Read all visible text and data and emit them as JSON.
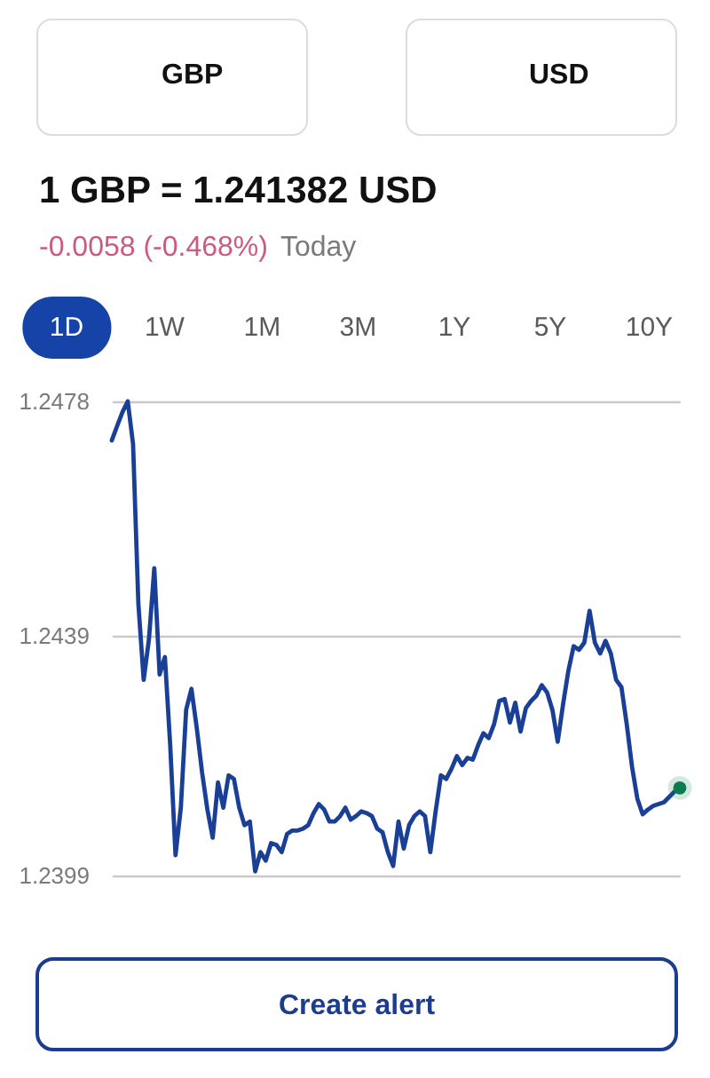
{
  "chart_data": {
    "type": "line",
    "title": "1 GBP = 1.241382 USD",
    "subtitle": "-0.0058 (-0.468%)",
    "annotations": [
      "GBP",
      "USD",
      "1D",
      "1W",
      "1M",
      "3M",
      "1Y",
      "5Y",
      "10Y",
      "Today",
      "Create alert"
    ],
    "categories": [
      null,
      null,
      null,
      null,
      null,
      null,
      null,
      null,
      null,
      null,
      null,
      null,
      null,
      null,
      null,
      null,
      null,
      null,
      null,
      null,
      null,
      null,
      null,
      null,
      null,
      null,
      null,
      null,
      null,
      null,
      null,
      null,
      null,
      null,
      null,
      null,
      null,
      null,
      null,
      null,
      null,
      null,
      null,
      null,
      null,
      null,
      null,
      null,
      null,
      null,
      null,
      null,
      null,
      null,
      null,
      null,
      null,
      null,
      null,
      null,
      null,
      null,
      null,
      null,
      null,
      null,
      null,
      null,
      null,
      null,
      null,
      null,
      null,
      null,
      null,
      null,
      null,
      null,
      null,
      null,
      null,
      null,
      null,
      null,
      null,
      null,
      null,
      null,
      null,
      null,
      null,
      null,
      null,
      null,
      null,
      null,
      null,
      null,
      null,
      null,
      null,
      null,
      null,
      null,
      null,
      null,
      null,
      null
    ],
    "ylim": [
      1.2399,
      1.2478
    ],
    "yticks": [
      1.2399,
      1.2439,
      1.2478
    ],
    "grid": "y",
    "tick_labels": "y",
    "line_style": "solid",
    "series": [
      {
        "color": "#1a3f96",
        "values": [
          1.24715,
          1.24739,
          1.24762,
          1.2478,
          1.24709,
          1.24443,
          1.24316,
          1.24384,
          1.24502,
          1.24325,
          1.24354,
          1.24207,
          1.24024,
          1.24103,
          1.24266,
          1.24301,
          1.24236,
          1.24162,
          1.241,
          1.24053,
          1.24145,
          1.24103,
          1.24157,
          1.24151,
          1.24103,
          1.24074,
          1.2408,
          1.23997,
          1.24029,
          1.24015,
          1.24044,
          1.24041,
          1.24029,
          1.24059,
          1.24065,
          1.24065,
          1.24068,
          1.24074,
          1.24094,
          1.24109,
          1.241,
          1.2408,
          1.2408,
          1.24089,
          1.24103,
          1.24083,
          1.24089,
          1.24097,
          1.24094,
          1.24089,
          1.24068,
          1.24062,
          1.24029,
          1.24006,
          1.2408,
          1.24035,
          1.24074,
          1.24089,
          1.24097,
          1.24089,
          1.24029,
          1.24097,
          1.24157,
          1.24151,
          1.24168,
          1.24189,
          1.24174,
          1.24186,
          1.24183,
          1.24207,
          1.24227,
          1.24219,
          1.24242,
          1.24281,
          1.24284,
          1.24245,
          1.24278,
          1.2423,
          1.24269,
          1.24281,
          1.2429,
          1.24307,
          1.24295,
          1.24266,
          1.24213,
          1.24275,
          1.24331,
          1.24372,
          1.24366,
          1.24378,
          1.24431,
          1.24378,
          1.2436,
          1.24381,
          1.2436,
          1.24316,
          1.24304,
          1.24242,
          1.24171,
          1.24118,
          1.24092,
          1.241,
          1.24106,
          1.24109,
          1.24112,
          1.24121,
          1.2413,
          1.24136
        ]
      },
      {
        "type": "scatter",
        "color": "#0b7d4e",
        "values": [
          null,
          null,
          null,
          null,
          null,
          null,
          null,
          null,
          null,
          null,
          null,
          null,
          null,
          null,
          null,
          null,
          null,
          null,
          null,
          null,
          null,
          null,
          null,
          null,
          null,
          null,
          null,
          null,
          null,
          null,
          null,
          null,
          null,
          null,
          null,
          null,
          null,
          null,
          null,
          null,
          null,
          null,
          null,
          null,
          null,
          null,
          null,
          null,
          null,
          null,
          null,
          null,
          null,
          null,
          null,
          null,
          null,
          null,
          null,
          null,
          null,
          null,
          null,
          null,
          null,
          null,
          null,
          null,
          null,
          null,
          null,
          null,
          null,
          null,
          null,
          null,
          null,
          null,
          null,
          null,
          null,
          null,
          null,
          null,
          null,
          null,
          null,
          null,
          null,
          null,
          null,
          null,
          null,
          null,
          null,
          null,
          null,
          null,
          null,
          null,
          null,
          null,
          null,
          null,
          null,
          null,
          null,
          1.24136
        ]
      }
    ]
  }
}
